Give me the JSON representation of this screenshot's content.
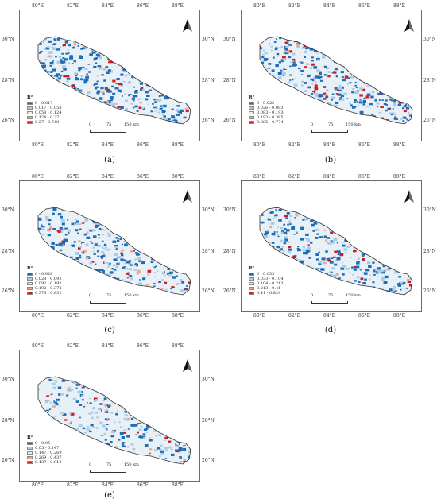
{
  "panels": [
    {
      "id": "a",
      "caption": "(a)",
      "legend_title": "R²",
      "legend": [
        "0 - 0.017",
        "0.017 - 0.058",
        "0.058 - 0.124",
        "0.124 - 0.27",
        "0.27 - 0.648"
      ]
    },
    {
      "id": "b",
      "caption": "(b)",
      "legend_title": "R²",
      "legend": [
        "0 - 0.026",
        "0.026 - 0.083",
        "0.083 - 0.193",
        "0.193 - 0.385",
        "0.385 - 0.774"
      ]
    },
    {
      "id": "c",
      "caption": "(c)",
      "legend_title": "R²",
      "legend": [
        "0 - 0.028",
        "0.028 - 0.092",
        "0.092 - 0.192",
        "0.192 - 0.378",
        "0.378 - 0.832"
      ]
    },
    {
      "id": "d",
      "caption": "(d)",
      "legend_title": "R²",
      "legend": [
        "0 - 0.033",
        "0.033 - 0.104",
        "0.104 - 0.213",
        "0.213 - 0.41",
        "0.41 - 0.824"
      ]
    },
    {
      "id": "e",
      "caption": "(e)",
      "legend_title": "R²",
      "legend": [
        "0 - 0.05",
        "0.05 - 0.147",
        "0.147 - 0.269",
        "0.269 - 0.437",
        "0.437 - 0.812"
      ]
    }
  ],
  "axes": {
    "x_ticks": [
      "80°E",
      "82°E",
      "84°E",
      "86°E",
      "88°E"
    ],
    "y_ticks": [
      "30°N",
      "28°N",
      "26°N"
    ]
  },
  "scalebar": {
    "labels": [
      "0",
      "75",
      "150 km"
    ]
  },
  "colors": {
    "class1": "#1f6db5",
    "class2": "#a9cde6",
    "class3": "#ececec",
    "class4": "#f2a58c",
    "class5": "#d7191c",
    "border": "#333333"
  },
  "north_arrow": "north-arrow-icon"
}
